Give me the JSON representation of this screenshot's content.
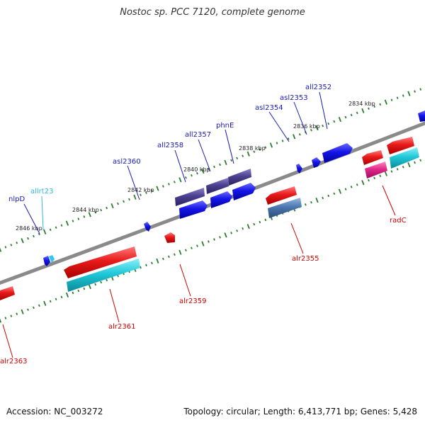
{
  "title": "Nostoc sp. PCC 7120, complete genome",
  "footer": {
    "accession": "Accession: NC_003272",
    "topology": "Topology: circular; Length: 6,413,771 bp; Genes: 5,428"
  },
  "colors": {
    "backbone": "#8a8a8a",
    "tick": "#2a7d2a",
    "reverse_gene": "#1515e6",
    "forward_gene": "#e01515",
    "reverse_cds": "#4a4090",
    "forward_cds": "#20c8d8",
    "highlight_cds": "#e0288a",
    "steel_cds": "#4a78b0",
    "label_blue": "#1a1ab4",
    "label_cyan": "#30b8e0",
    "label_red": "#cc0000"
  },
  "tick_labels": [
    "2846 kbp",
    "2844 kbp",
    "2842 kbp",
    "2840 kbp",
    "2838 kbp",
    "2836 kbp",
    "2834 kbp"
  ],
  "gene_labels": {
    "nlpD": "nlpD",
    "allrt23": "allrt23",
    "asl2360": "asl2360",
    "all2358": "all2358",
    "all2357": "all2357",
    "phnE": "phnE",
    "asl2354": "asl2354",
    "asl2353": "asl2353",
    "all2352": "all2352",
    "alr2363": "alr2363",
    "alr2361": "alr2361",
    "alr2359": "alr2359",
    "alr2355": "alr2355",
    "radC": "radC"
  }
}
